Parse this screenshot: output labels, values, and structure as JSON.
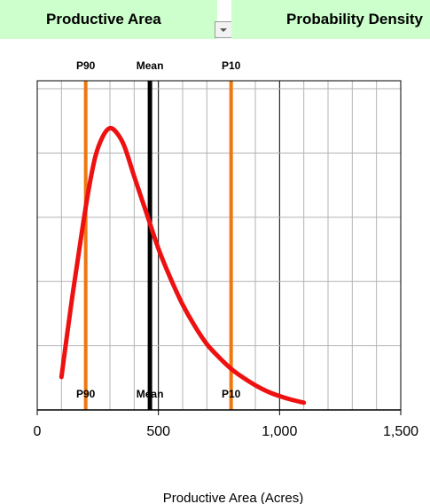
{
  "header": {
    "left_label": "Productive Area",
    "right_label": "Probability Density",
    "dropdown_icon": "chevron-down-icon"
  },
  "chart_data": {
    "type": "line",
    "xlabel": "Productive Area (Acres)",
    "xlim": [
      0,
      1500
    ],
    "ylim": [
      0,
      1
    ],
    "x_ticks": [
      {
        "value": 0,
        "label": "0"
      },
      {
        "value": 500,
        "label": "500"
      },
      {
        "value": 1000,
        "label": "1,000"
      },
      {
        "value": 1500,
        "label": "1,500"
      }
    ],
    "grid": true,
    "series": [
      {
        "color": "#ee1111",
        "x": [
          100,
          140,
          180,
          210,
          240,
          270,
          300,
          330,
          360,
          400,
          450,
          500,
          550,
          600,
          650,
          700,
          750,
          800,
          850,
          900,
          950,
          1000,
          1050,
          1100
        ],
        "y": [
          0.1,
          0.32,
          0.52,
          0.66,
          0.77,
          0.83,
          0.856,
          0.84,
          0.8,
          0.71,
          0.6,
          0.49,
          0.4,
          0.32,
          0.255,
          0.2,
          0.16,
          0.125,
          0.098,
          0.075,
          0.056,
          0.042,
          0.031,
          0.022
        ]
      }
    ],
    "vlines": [
      {
        "label": "P90",
        "x": 200,
        "color": "#ee7711"
      },
      {
        "label": "Mean",
        "x": 465,
        "color": "#000000"
      },
      {
        "label": "P10",
        "x": 800,
        "color": "#ee7711"
      }
    ]
  }
}
